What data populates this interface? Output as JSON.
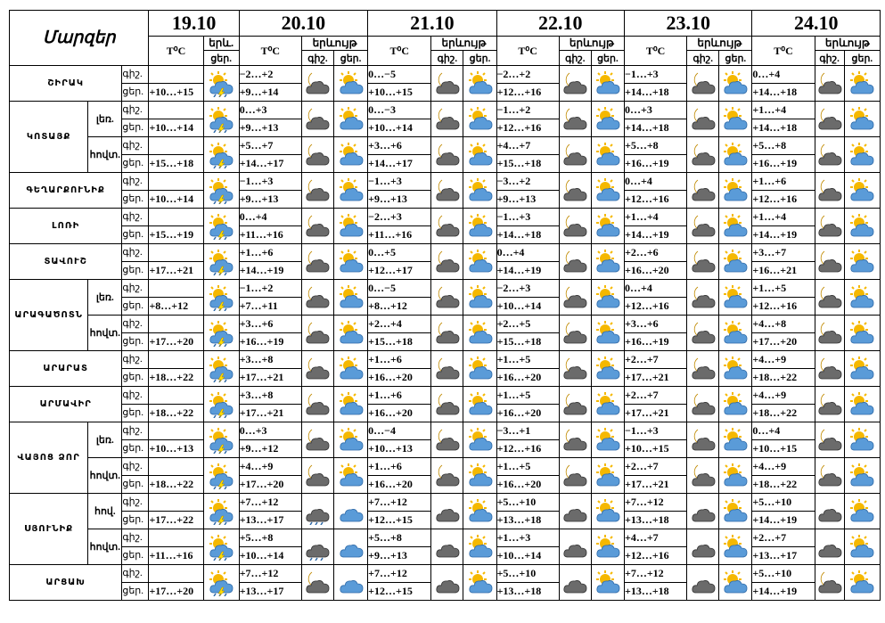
{
  "header": {
    "title": "Մարզեր",
    "temp_label": "T⁰C",
    "weather_label": "երևույթ",
    "weather_label_short": "երև.",
    "night_label": "գիշ.",
    "day_label": "ցեր.",
    "day_label_short": "ցեր."
  },
  "dates": [
    "19.10",
    "20.10",
    "21.10",
    "22.10",
    "23.10",
    "24.10"
  ],
  "regions": [
    {
      "name": "ՇԻՐԱԿ",
      "rows": [
        {
          "sub": "",
          "night": "",
          "day": "+10…+15",
          "forecast": [
            [
              "−2…+2",
              "+9…+14"
            ],
            [
              "0…−5",
              "+10…+15"
            ],
            [
              "−2…+2",
              "+12…+16"
            ],
            [
              "−1…+3",
              "+14…+18"
            ],
            [
              "0…+4",
              "+14…+18"
            ]
          ],
          "icons": [
            "rain-thunder",
            [
              "moon-cloud",
              "sun-cloud"
            ],
            [
              "moon-cloud",
              "sun-cloud"
            ],
            [
              "moon-cloud",
              "sun-cloud"
            ],
            [
              "moon-cloud",
              "sun-cloud"
            ],
            [
              "moon-cloud",
              "sun-cloud"
            ]
          ]
        }
      ]
    },
    {
      "name": "ԿՈՏԱՅՔ",
      "rows": [
        {
          "sub": "լեռ.",
          "night": "",
          "day": "+10…+14",
          "forecast": [
            [
              "0…+3",
              "+9…+13"
            ],
            [
              "0…−3",
              "+10…+14"
            ],
            [
              "−1…+2",
              "+12…+16"
            ],
            [
              "0…+3",
              "+14…+18"
            ],
            [
              "+1…+4",
              "+14…+18"
            ]
          ],
          "icons": [
            "rain-thunder",
            [
              "moon-cloud",
              "sun-cloud"
            ],
            [
              "moon-cloud",
              "sun-cloud"
            ],
            [
              "moon-cloud",
              "sun-cloud"
            ],
            [
              "moon-cloud",
              "sun-cloud"
            ],
            [
              "moon-cloud",
              "sun-cloud"
            ]
          ]
        },
        {
          "sub": "հովտ.",
          "night": "",
          "day": "+15…+18",
          "forecast": [
            [
              "+5…+7",
              "+14…+17"
            ],
            [
              "+3…+6",
              "+14…+17"
            ],
            [
              "+4…+7",
              "+15…+18"
            ],
            [
              "+5…+8",
              "+16…+19"
            ],
            [
              "+5…+8",
              "+16…+19"
            ]
          ],
          "icons": [
            "rain-thunder",
            [
              "moon-cloud",
              "sun-cloud"
            ],
            [
              "moon-cloud",
              "sun-cloud"
            ],
            [
              "moon-cloud",
              "sun-cloud"
            ],
            [
              "moon-cloud",
              "sun-cloud"
            ],
            [
              "moon-cloud",
              "sun-cloud"
            ]
          ]
        }
      ]
    },
    {
      "name": "ԳԵՂԱՐՔՈՒՆԻՔ",
      "rows": [
        {
          "sub": "",
          "night": "",
          "day": "+10…+14",
          "forecast": [
            [
              "−1…+3",
              "+9…+13"
            ],
            [
              "−1…+3",
              "+9…+13"
            ],
            [
              "−3…+2",
              "+9…+13"
            ],
            [
              "0…+4",
              "+12…+16"
            ],
            [
              "+1…+6",
              "+12…+16"
            ]
          ],
          "icons": [
            "rain-thunder",
            [
              "moon-cloud",
              "sun-cloud"
            ],
            [
              "moon-cloud",
              "sun-cloud"
            ],
            [
              "moon-cloud",
              "sun-cloud"
            ],
            [
              "moon-cloud",
              "sun-cloud"
            ],
            [
              "moon-cloud",
              "sun-cloud"
            ]
          ]
        }
      ]
    },
    {
      "name": "ԼՈՌԻ",
      "rows": [
        {
          "sub": "",
          "night": "",
          "day": "+15…+19",
          "forecast": [
            [
              "0…+4",
              "+11…+16"
            ],
            [
              "−2…+3",
              "+11…+16"
            ],
            [
              "−1…+3",
              "+14…+18"
            ],
            [
              "+1…+4",
              "+14…+19"
            ],
            [
              "+1…+4",
              "+14…+19"
            ]
          ],
          "icons": [
            "rain-thunder",
            [
              "moon-cloud",
              "sun-cloud"
            ],
            [
              "moon-cloud",
              "sun-cloud"
            ],
            [
              "moon-cloud",
              "sun-cloud"
            ],
            [
              "moon-cloud",
              "sun-cloud"
            ],
            [
              "moon-cloud",
              "sun-cloud"
            ]
          ]
        }
      ]
    },
    {
      "name": "ՏԱՎՈՒՇ",
      "rows": [
        {
          "sub": "",
          "night": "",
          "day": "+17…+21",
          "forecast": [
            [
              "+1…+6",
              "+14…+19"
            ],
            [
              "0…+5",
              "+12…+17"
            ],
            [
              "0…+4",
              "+14…+19"
            ],
            [
              "+2…+6",
              "+16…+20"
            ],
            [
              "+3…+7",
              "+16…+21"
            ]
          ],
          "icons": [
            "rain-thunder",
            [
              "moon-cloud",
              "sun-cloud"
            ],
            [
              "moon-cloud",
              "sun-cloud"
            ],
            [
              "moon-cloud",
              "sun-cloud"
            ],
            [
              "moon-cloud",
              "sun-cloud"
            ],
            [
              "moon-cloud",
              "sun-cloud"
            ]
          ]
        }
      ]
    },
    {
      "name": "ԱՐԱԳԱԾՈՏՆ",
      "rows": [
        {
          "sub": "լեռ.",
          "night": "",
          "day": "+8…+12",
          "forecast": [
            [
              "−1…+2",
              "+7…+11"
            ],
            [
              "0…−5",
              "+8…+12"
            ],
            [
              "−2…+3",
              "+10…+14"
            ],
            [
              "0…+4",
              "+12…+16"
            ],
            [
              "+1…+5",
              "+12…+16"
            ]
          ],
          "icons": [
            "rain-thunder",
            [
              "moon-cloud",
              "sun-cloud"
            ],
            [
              "moon-cloud",
              "sun-cloud"
            ],
            [
              "moon-cloud",
              "sun-cloud"
            ],
            [
              "moon-cloud",
              "sun-cloud"
            ],
            [
              "moon-cloud",
              "sun-cloud"
            ]
          ]
        },
        {
          "sub": "հովտ.",
          "night": "",
          "day": "+17…+20",
          "forecast": [
            [
              "+3…+6",
              "+16…+19"
            ],
            [
              "+2…+4",
              "+15…+18"
            ],
            [
              "+2…+5",
              "+15…+18"
            ],
            [
              "+3…+6",
              "+16…+19"
            ],
            [
              "+4…+8",
              "+17…+20"
            ]
          ],
          "icons": [
            "rain-thunder",
            [
              "moon-cloud",
              "sun-cloud"
            ],
            [
              "moon-cloud",
              "sun-cloud"
            ],
            [
              "moon-cloud",
              "sun-cloud"
            ],
            [
              "moon-cloud",
              "sun-cloud"
            ],
            [
              "moon-cloud",
              "sun-cloud"
            ]
          ]
        }
      ]
    },
    {
      "name": "ԱՐԱՐԱՏ",
      "rows": [
        {
          "sub": "",
          "night": "",
          "day": "+18…+22",
          "forecast": [
            [
              "+3…+8",
              "+17…+21"
            ],
            [
              "+1…+6",
              "+16…+20"
            ],
            [
              "+1…+5",
              "+16…+20"
            ],
            [
              "+2…+7",
              "+17…+21"
            ],
            [
              "+4…+9",
              "+18…+22"
            ]
          ],
          "icons": [
            "rain-thunder",
            [
              "moon-cloud",
              "sun-cloud"
            ],
            [
              "moon-cloud",
              "sun-cloud"
            ],
            [
              "moon-cloud",
              "sun-cloud"
            ],
            [
              "moon-cloud",
              "sun-cloud"
            ],
            [
              "moon-cloud",
              "sun-cloud"
            ]
          ]
        }
      ]
    },
    {
      "name": "ԱՐՄԱՎԻՐ",
      "rows": [
        {
          "sub": "",
          "night": "",
          "day": "+18…+22",
          "forecast": [
            [
              "+3…+8",
              "+17…+21"
            ],
            [
              "+1…+6",
              "+16…+20"
            ],
            [
              "+1…+5",
              "+16…+20"
            ],
            [
              "+2…+7",
              "+17…+21"
            ],
            [
              "+4…+9",
              "+18…+22"
            ]
          ],
          "icons": [
            "rain-thunder",
            [
              "moon-cloud",
              "sun-cloud"
            ],
            [
              "moon-cloud",
              "sun-cloud"
            ],
            [
              "moon-cloud",
              "sun-cloud"
            ],
            [
              "moon-cloud",
              "sun-cloud"
            ],
            [
              "moon-cloud",
              "sun-cloud"
            ]
          ]
        }
      ]
    },
    {
      "name": "ՎԱՅՈՑ ՁՈՐ",
      "rows": [
        {
          "sub": "լեռ.",
          "night": "",
          "day": "+10…+13",
          "forecast": [
            [
              "0…+3",
              "+9…+12"
            ],
            [
              "0…−4",
              "+10…+13"
            ],
            [
              "−3…+1",
              "+12…+16"
            ],
            [
              "−1…+3",
              "+10…+15"
            ],
            [
              "0…+4",
              "+10…+15"
            ]
          ],
          "icons": [
            "rain-thunder",
            [
              "moon-cloud",
              "sun-cloud"
            ],
            [
              "moon-cloud",
              "sun-cloud"
            ],
            [
              "moon-cloud",
              "sun-cloud"
            ],
            [
              "moon-cloud",
              "sun-cloud"
            ],
            [
              "moon-cloud",
              "sun-cloud"
            ]
          ]
        },
        {
          "sub": "հովտ.",
          "night": "",
          "day": "+18…+22",
          "forecast": [
            [
              "+4…+9",
              "+17…+20"
            ],
            [
              "+1…+6",
              "+16…+20"
            ],
            [
              "+1…+5",
              "+16…+20"
            ],
            [
              "+2…+7",
              "+17…+21"
            ],
            [
              "+4…+9",
              "+18…+22"
            ]
          ],
          "icons": [
            "rain-thunder",
            [
              "moon-cloud",
              "sun-cloud"
            ],
            [
              "moon-cloud",
              "sun-cloud"
            ],
            [
              "moon-cloud",
              "sun-cloud"
            ],
            [
              "moon-cloud",
              "sun-cloud"
            ],
            [
              "moon-cloud",
              "sun-cloud"
            ]
          ]
        }
      ]
    },
    {
      "name": "ՍՅՈՒՆԻՔ",
      "rows": [
        {
          "sub": "հով.",
          "night": "",
          "day": "+17…+22",
          "forecast": [
            [
              "+7…+12",
              "+13…+17"
            ],
            [
              "+7…+12",
              "+12…+15"
            ],
            [
              "+5…+10",
              "+13…+18"
            ],
            [
              "+7…+12",
              "+13…+18"
            ],
            [
              "+5…+10",
              "+14…+19"
            ]
          ],
          "icons": [
            "rain-thunder",
            [
              "cloud-rain",
              "cloud-blue"
            ],
            [
              "dark-cloud",
              "sun-cloud"
            ],
            [
              "dark-cloud",
              "sun-cloud"
            ],
            [
              "dark-cloud",
              "sun-cloud"
            ],
            [
              "dark-cloud",
              "sun-cloud"
            ]
          ]
        },
        {
          "sub": "հովտ.",
          "night": "",
          "day": "+11…+16",
          "forecast": [
            [
              "+5…+8",
              "+10…+14"
            ],
            [
              "+5…+8",
              "+9…+13"
            ],
            [
              "+1…+3",
              "+10…+14"
            ],
            [
              "+4…+7",
              "+12…+16"
            ],
            [
              "+2…+7",
              "+13…+17"
            ]
          ],
          "icons": [
            "rain-thunder",
            [
              "cloud-rain",
              "cloud-blue"
            ],
            [
              "dark-cloud",
              "sun-cloud"
            ],
            [
              "dark-cloud",
              "sun-cloud"
            ],
            [
              "dark-cloud",
              "sun-cloud"
            ],
            [
              "dark-cloud",
              "sun-cloud"
            ]
          ]
        }
      ]
    },
    {
      "name": "ԱՐՑԱԽ",
      "rows": [
        {
          "sub": "",
          "night": "",
          "day": "+17…+20",
          "forecast": [
            [
              "+7…+12",
              "+13…+17"
            ],
            [
              "+7…+12",
              "+12…+15"
            ],
            [
              "+5…+10",
              "+13…+18"
            ],
            [
              "+7…+12",
              "+13…+18"
            ],
            [
              "+5…+10",
              "+14…+19"
            ]
          ],
          "icons": [
            "rain-thunder",
            [
              "moon-cloud",
              "cloud-blue"
            ],
            [
              "dark-cloud",
              "sun-cloud"
            ],
            [
              "dark-cloud",
              "sun-cloud"
            ],
            [
              "dark-cloud",
              "sun-cloud"
            ],
            [
              "moon-cloud",
              "sun-cloud"
            ]
          ]
        }
      ]
    }
  ],
  "colors": {
    "sun": "#f5b800",
    "cloud": "#5a9bd8",
    "dark_cloud": "#6b6b6b",
    "moon": "#f0c000"
  }
}
